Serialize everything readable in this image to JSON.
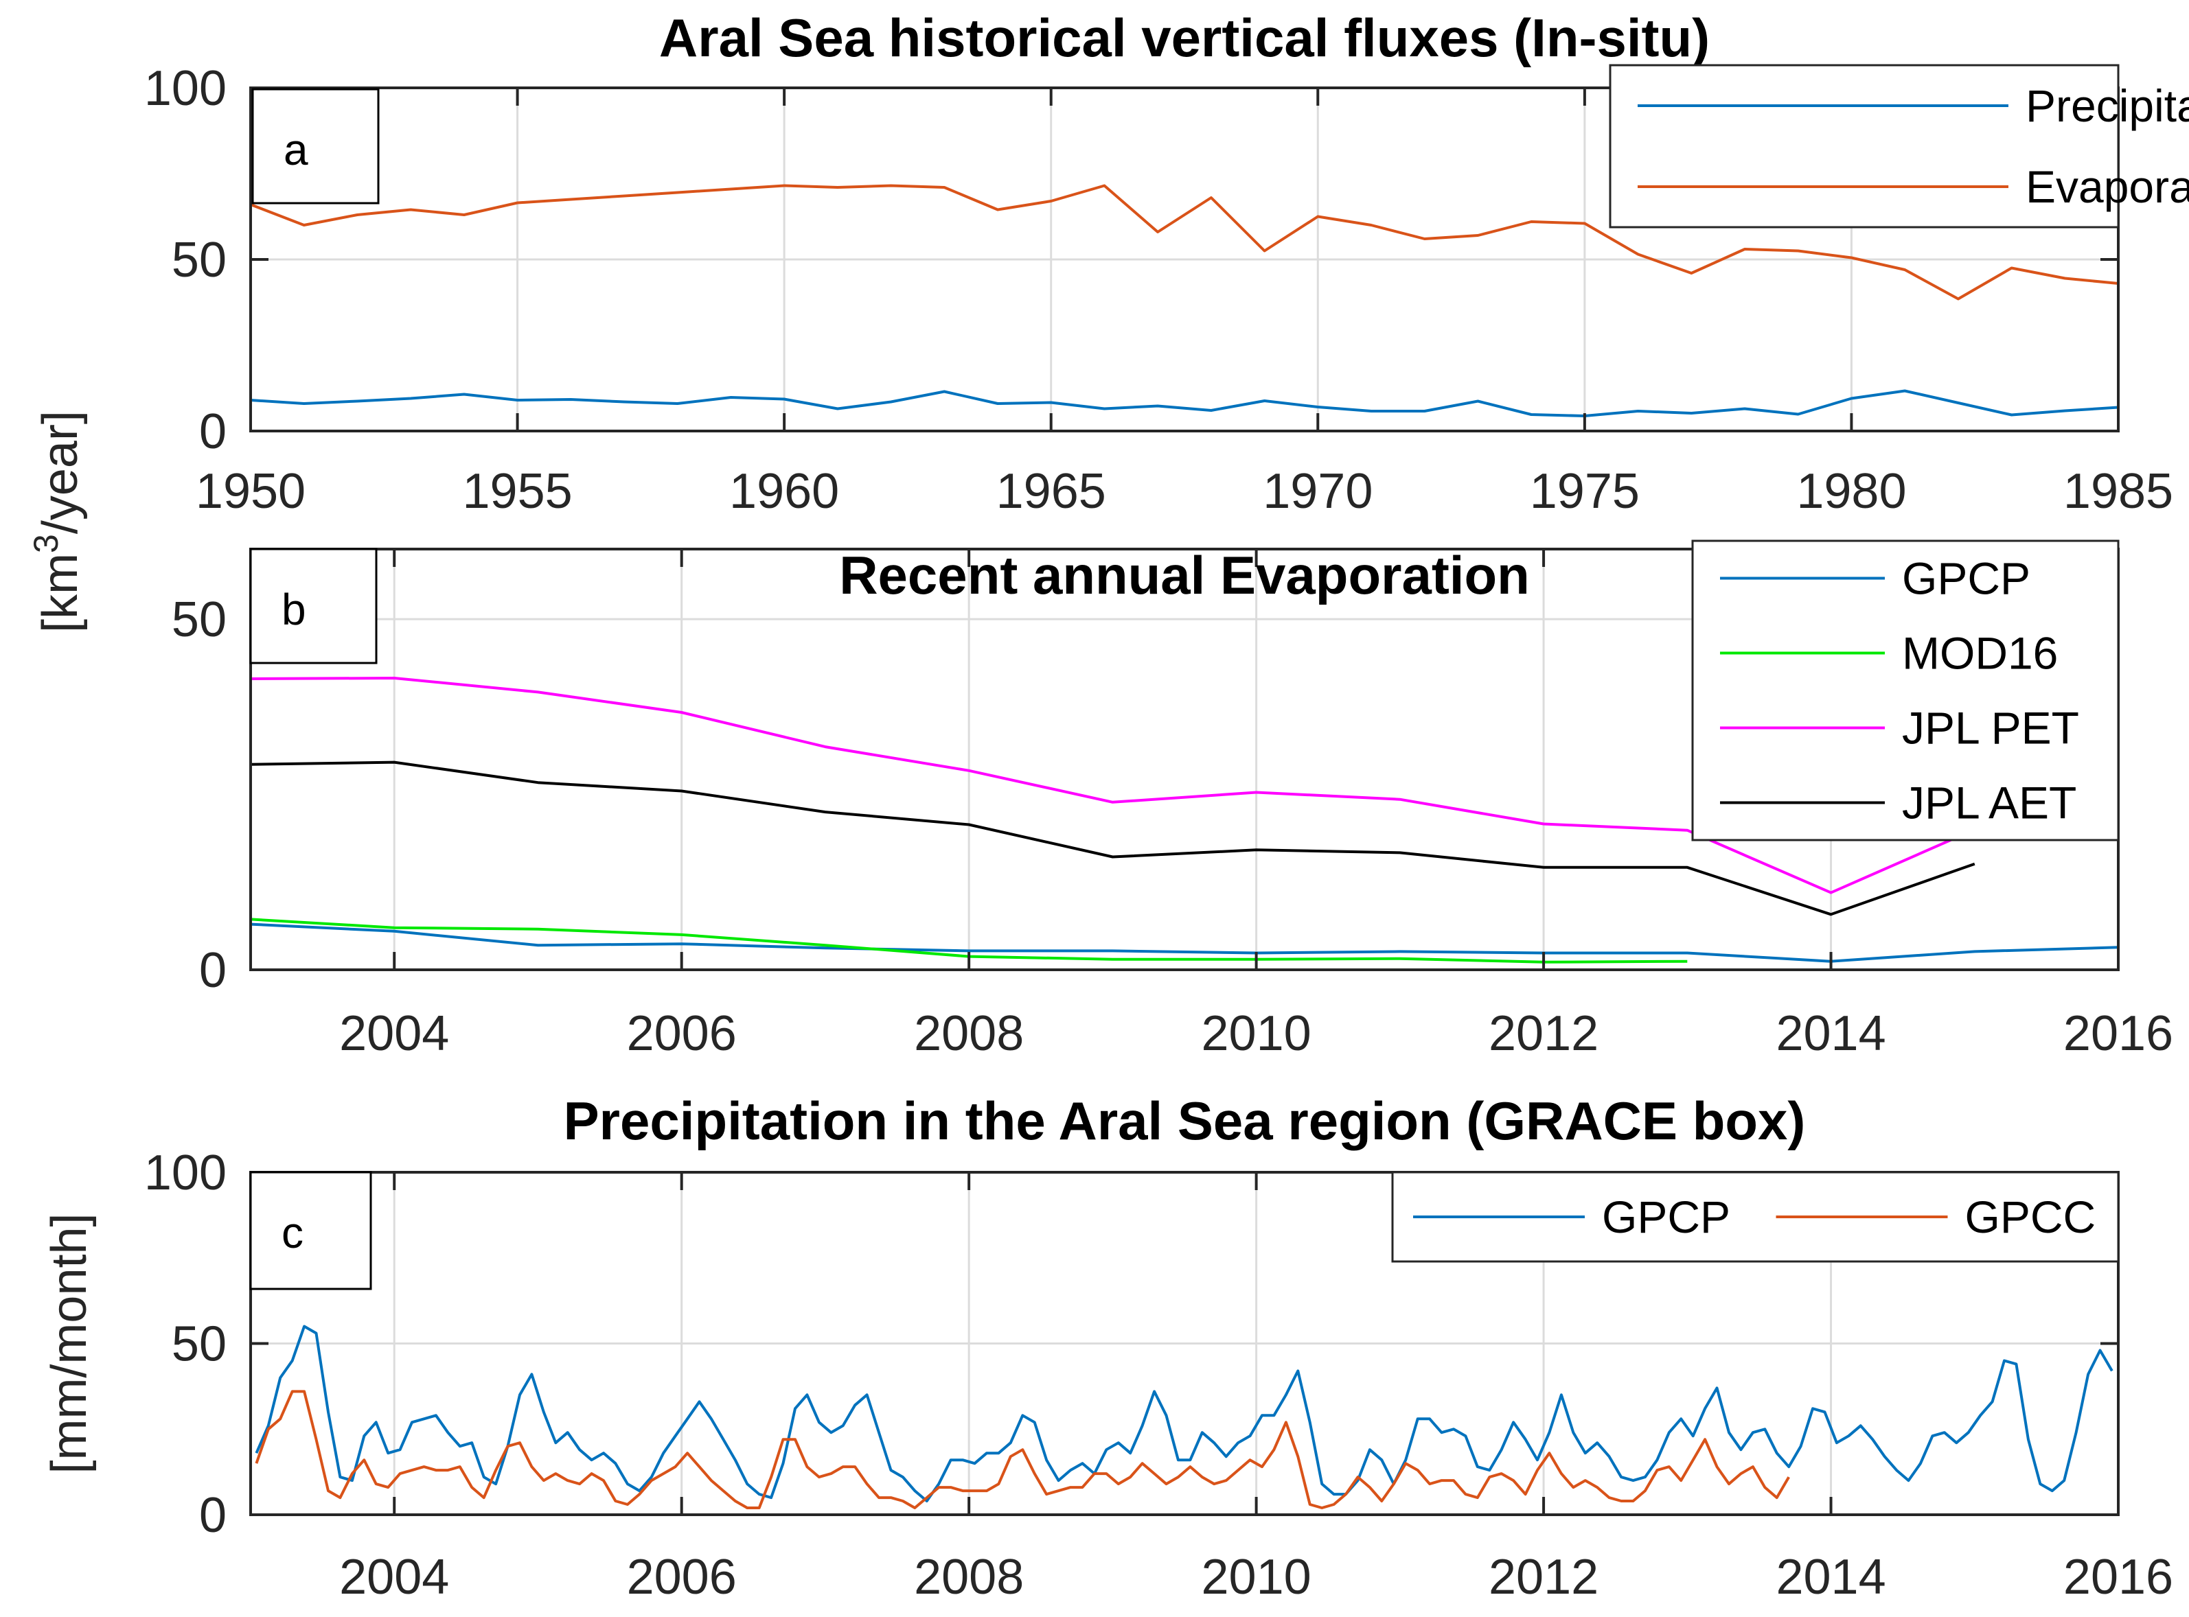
{
  "chart_data": [
    {
      "id": "a",
      "type": "line",
      "title": "Aral Sea historical vertical fluxes (In-situ)",
      "panel_label": "a",
      "xlim": [
        1950,
        1985
      ],
      "ylim": [
        0,
        100
      ],
      "xticks": [
        1950,
        1955,
        1960,
        1965,
        1970,
        1975,
        1980,
        1985
      ],
      "yticks": [
        0,
        50,
        100
      ],
      "grid": true,
      "legend": "top-right",
      "series": [
        {
          "name": "Precipitation",
          "color": "#0072BD",
          "x": [
            1950,
            1951,
            1952,
            1953,
            1954,
            1955,
            1956,
            1957,
            1958,
            1959,
            1960,
            1961,
            1962,
            1963,
            1964,
            1965,
            1966,
            1967,
            1968,
            1969,
            1970,
            1971,
            1972,
            1973,
            1974,
            1975,
            1976,
            1977,
            1978,
            1979,
            1980,
            1981,
            1982,
            1983,
            1984,
            1985
          ],
          "y": [
            9,
            8,
            8.7,
            9.5,
            10.7,
            9,
            9.2,
            8.5,
            8,
            9.8,
            9.3,
            6.5,
            8.5,
            11.5,
            8,
            8.3,
            6.5,
            7.3,
            6,
            8.8,
            7,
            5.8,
            5.8,
            8.7,
            4.8,
            4.4,
            5.8,
            5.2,
            6.5,
            4.9,
            9.5,
            11.7,
            8.2,
            4.7,
            5.9,
            6.9
          ]
        },
        {
          "name": "Evaporation",
          "color": "#D95319",
          "x": [
            1950,
            1951,
            1952,
            1953,
            1954,
            1955,
            1956,
            1957,
            1958,
            1959,
            1960,
            1961,
            1962,
            1963,
            1964,
            1965,
            1966,
            1967,
            1968,
            1969,
            1970,
            1971,
            1972,
            1973,
            1974,
            1975,
            1976,
            1977,
            1978,
            1979,
            1980,
            1981,
            1982,
            1983,
            1984,
            1985
          ],
          "y": [
            66,
            60,
            63,
            64.5,
            63,
            66.5,
            67.5,
            68.5,
            69.5,
            70.5,
            71.5,
            71,
            71.5,
            71,
            64.5,
            67,
            71.5,
            58,
            68,
            52.5,
            62.5,
            60,
            56,
            57,
            61,
            60.5,
            51.5,
            46,
            53,
            52.5,
            50.5,
            47,
            38.5,
            47.5,
            44.5,
            43
          ]
        }
      ]
    },
    {
      "id": "b",
      "type": "line",
      "title": "Recent annual Evaporation",
      "panel_label": "b",
      "xlim": [
        2003,
        2016
      ],
      "ylim": [
        0,
        60
      ],
      "xticks": [
        2004,
        2006,
        2008,
        2010,
        2012,
        2014,
        2016
      ],
      "yticks": [
        0,
        50
      ],
      "grid": true,
      "legend": "top-right",
      "series": [
        {
          "name": "GPCP",
          "color": "#0072BD",
          "x": [
            2003,
            2004,
            2005,
            2006,
            2007,
            2008,
            2009,
            2010,
            2011,
            2012,
            2013,
            2014,
            2015,
            2016
          ],
          "y": [
            6.5,
            5.5,
            3.5,
            3.7,
            3.1,
            2.7,
            2.7,
            2.4,
            2.6,
            2.4,
            2.4,
            1.2,
            2.6,
            3.2
          ]
        },
        {
          "name": "MOD16",
          "color": "#00E800",
          "x": [
            2003,
            2004,
            2005,
            2006,
            2007,
            2008,
            2009,
            2010,
            2011,
            2012,
            2013
          ],
          "y": [
            7.2,
            6,
            5.8,
            5,
            3.5,
            1.9,
            1.5,
            1.5,
            1.6,
            1.1,
            1.2
          ]
        },
        {
          "name": "JPL PET",
          "color": "#FF00FF",
          "x": [
            2003,
            2004,
            2005,
            2006,
            2007,
            2008,
            2009,
            2010,
            2011,
            2012,
            2013,
            2014,
            2015
          ],
          "y": [
            41.5,
            41.6,
            39.6,
            36.7,
            31.8,
            28.4,
            23.9,
            25.3,
            24.3,
            20.8,
            19.9,
            11,
            20
          ]
        },
        {
          "name": "JPL AET",
          "color": "#000000",
          "x": [
            2003,
            2004,
            2005,
            2006,
            2007,
            2008,
            2009,
            2010,
            2011,
            2012,
            2013,
            2014,
            2015
          ],
          "y": [
            29.3,
            29.6,
            26.7,
            25.5,
            22.5,
            20.7,
            16.1,
            17.1,
            16.7,
            14.6,
            14.6,
            7.9,
            15.1
          ]
        }
      ]
    },
    {
      "id": "c",
      "type": "line",
      "title": "Precipitation in the Aral Sea region (GRACE box)",
      "panel_label": "c",
      "ylabel": "[mm/month]",
      "xlim": [
        2003,
        2016
      ],
      "ylim": [
        0,
        100
      ],
      "xticks": [
        2004,
        2006,
        2008,
        2010,
        2012,
        2014,
        2016
      ],
      "yticks": [
        0,
        50,
        100
      ],
      "grid": true,
      "legend": "top-right",
      "x_start": 2003.04,
      "x_step_months": 1,
      "series": [
        {
          "name": "GPCP",
          "color": "#0072BD",
          "values": [
            18,
            26,
            40,
            45,
            55,
            53,
            30,
            11,
            10,
            23,
            27,
            18,
            19,
            27,
            28,
            29,
            24,
            20,
            21,
            11,
            9,
            20,
            35,
            41,
            30,
            21,
            24,
            19,
            16,
            18,
            15,
            9,
            7,
            11,
            18,
            23,
            28,
            33,
            28,
            22,
            16,
            9,
            6,
            5,
            15,
            31,
            35,
            27,
            24,
            26,
            32,
            35,
            24,
            13,
            11,
            7,
            4,
            9,
            16,
            16,
            15,
            18,
            18,
            21,
            29,
            27,
            16,
            10,
            13,
            15,
            12,
            19,
            21,
            18,
            26,
            36,
            29,
            16,
            16,
            24,
            21,
            17,
            21,
            23,
            29,
            29,
            35,
            42,
            27,
            9,
            6,
            6,
            10,
            19,
            16,
            9,
            16,
            28,
            28,
            24,
            25,
            23,
            14,
            13,
            19,
            27,
            22,
            16,
            24,
            35,
            24,
            18,
            21,
            17,
            11,
            10,
            11,
            16,
            24,
            28,
            23,
            31,
            37,
            24,
            19,
            24,
            25,
            18,
            14,
            20,
            31,
            30,
            21,
            23,
            26,
            22,
            17,
            13,
            10,
            15,
            23,
            24,
            21,
            24,
            29,
            33,
            45,
            44,
            22,
            9,
            7,
            10,
            24,
            41,
            48,
            42
          ]
        },
        {
          "name": "GPCC",
          "color": "#D95319",
          "values": [
            15,
            25,
            28,
            36,
            36,
            22,
            7,
            5,
            12,
            16,
            9,
            8,
            12,
            13,
            14,
            13,
            13,
            14,
            8,
            5,
            13,
            20,
            21,
            14,
            10,
            12,
            10,
            9,
            12,
            10,
            4,
            3,
            6,
            10,
            12,
            14,
            18,
            14,
            10,
            7,
            4,
            2,
            2,
            11,
            22,
            22,
            14,
            11,
            12,
            14,
            14,
            9,
            5,
            5,
            4,
            2,
            5,
            8,
            8,
            7,
            7,
            7,
            9,
            17,
            19,
            12,
            6,
            7,
            8,
            8,
            12,
            12,
            9,
            11,
            15,
            12,
            9,
            11,
            14,
            11,
            9,
            10,
            13,
            16,
            14,
            19,
            27,
            17,
            3,
            2,
            3,
            6,
            11,
            8,
            4,
            9,
            15,
            13,
            9,
            10,
            10,
            6,
            5,
            11,
            12,
            10,
            6,
            13,
            18,
            12,
            8,
            10,
            8,
            5,
            4,
            4,
            7,
            13,
            14,
            10,
            16,
            22,
            14,
            9,
            12,
            14,
            8,
            5,
            11
          ]
        }
      ]
    }
  ],
  "shared_ylabel": {
    "prefix": "[km",
    "superscript": "3",
    "suffix": "/year]"
  }
}
